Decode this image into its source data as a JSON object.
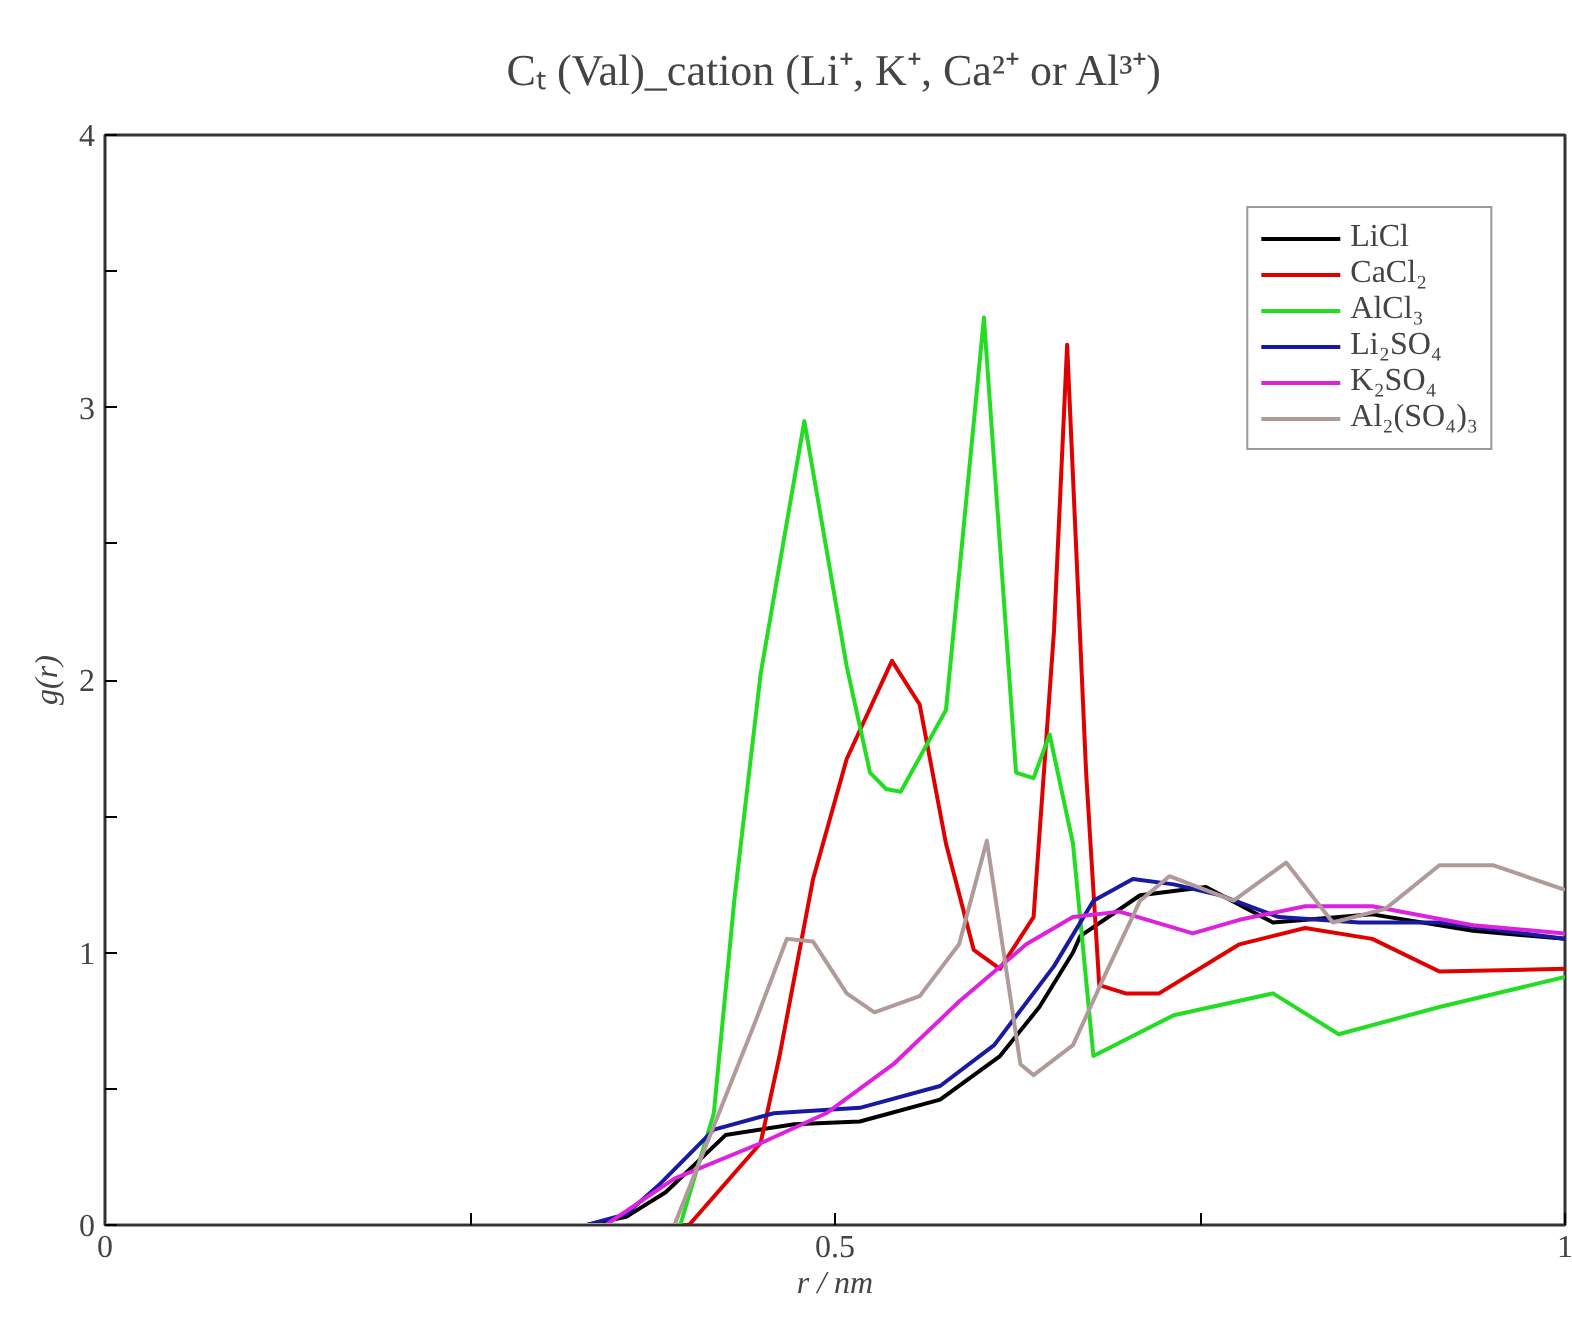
{
  "chart_data": {
    "type": "line",
    "title": "Cₜ (Val)_cation (Li⁺, K⁺, Ca²⁺ or Al³⁺)",
    "xlabel": "r / nm",
    "ylabel": "g(r)",
    "xlim": [
      0,
      1
    ],
    "ylim": [
      0,
      4
    ],
    "xticks": [
      0,
      {
        "value": 0.25,
        "label": null
      },
      0.5,
      {
        "value": 0.75,
        "label": null
      },
      1
    ],
    "yticks": [
      0,
      {
        "value": 0.5,
        "label": null
      },
      1,
      {
        "value": 1.5,
        "label": null
      },
      2,
      {
        "value": 2.5,
        "label": null
      },
      3,
      {
        "value": 3.5,
        "label": null
      },
      4
    ],
    "grid": false,
    "legend": "top right",
    "marker": "none",
    "line_style": "solid",
    "series": [
      {
        "name": "LiCl",
        "color": "#000000",
        "x": [
          0,
          0.33,
          0.357,
          0.384,
          0.425,
          0.472,
          0.517,
          0.572,
          0.613,
          0.64,
          0.663,
          0.668,
          0.709,
          0.754,
          0.8,
          0.868,
          0.937,
          1.0
        ],
        "values": [
          0,
          0,
          0.03,
          0.12,
          0.33,
          0.37,
          0.38,
          0.46,
          0.62,
          0.8,
          1.0,
          1.06,
          1.21,
          1.24,
          1.11,
          1.14,
          1.08,
          1.05
        ]
      },
      {
        "name": "CaCl₂",
        "color": "#e00000",
        "x": [
          0,
          0.4,
          0.449,
          0.462,
          0.485,
          0.508,
          0.539,
          0.558,
          0.576,
          0.595,
          0.613,
          0.636,
          0.65,
          0.659,
          0.672,
          0.681,
          0.699,
          0.722,
          0.777,
          0.822,
          0.868,
          0.914,
          1.0
        ],
        "values": [
          0,
          0,
          0.3,
          0.62,
          1.27,
          1.71,
          2.07,
          1.91,
          1.4,
          1.01,
          0.94,
          1.13,
          2.18,
          3.23,
          1.66,
          0.88,
          0.85,
          0.85,
          1.03,
          1.09,
          1.05,
          0.93,
          0.94
        ]
      },
      {
        "name": "AlCl₃",
        "color": "#22dd22",
        "x": [
          0,
          0.394,
          0.417,
          0.431,
          0.449,
          0.479,
          0.508,
          0.524,
          0.535,
          0.545,
          0.576,
          0.602,
          0.624,
          0.636,
          0.647,
          0.663,
          0.677,
          0.732,
          0.8,
          0.845,
          0.914,
          1.0
        ],
        "values": [
          0,
          0,
          0.41,
          1.19,
          2.02,
          2.95,
          2.05,
          1.66,
          1.6,
          1.59,
          1.89,
          3.33,
          1.66,
          1.64,
          1.8,
          1.4,
          0.62,
          0.77,
          0.85,
          0.7,
          0.8,
          0.91
        ]
      },
      {
        "name": "Li₂SO₄",
        "color": "#1a1aa0",
        "x": [
          0,
          0.33,
          0.357,
          0.38,
          0.417,
          0.458,
          0.517,
          0.572,
          0.609,
          0.65,
          0.677,
          0.704,
          0.732,
          0.764,
          0.804,
          0.859,
          0.914,
          1.0
        ],
        "values": [
          0,
          0,
          0.04,
          0.15,
          0.35,
          0.41,
          0.43,
          0.51,
          0.66,
          0.95,
          1.19,
          1.27,
          1.25,
          1.21,
          1.13,
          1.11,
          1.11,
          1.05
        ]
      },
      {
        "name": "K₂SO₄",
        "color": "#dd22dd",
        "x": [
          0,
          0.343,
          0.39,
          0.449,
          0.494,
          0.54,
          0.585,
          0.631,
          0.663,
          0.695,
          0.745,
          0.777,
          0.822,
          0.868,
          0.937,
          1.0
        ],
        "values": [
          0,
          0,
          0.17,
          0.3,
          0.41,
          0.59,
          0.82,
          1.03,
          1.13,
          1.15,
          1.07,
          1.12,
          1.17,
          1.17,
          1.1,
          1.07
        ]
      },
      {
        "name": "Al₂(SO₄)₃",
        "color": "#b09a9a",
        "x": [
          0,
          0.39,
          0.445,
          0.467,
          0.485,
          0.508,
          0.527,
          0.558,
          0.585,
          0.604,
          0.627,
          0.636,
          0.663,
          0.686,
          0.709,
          0.729,
          0.773,
          0.809,
          0.841,
          0.877,
          0.914,
          0.951,
          1.0
        ],
        "values": [
          0,
          0,
          0.74,
          1.05,
          1.04,
          0.85,
          0.78,
          0.84,
          1.03,
          1.41,
          0.59,
          0.55,
          0.66,
          0.93,
          1.19,
          1.28,
          1.19,
          1.33,
          1.11,
          1.16,
          1.32,
          1.32,
          1.23
        ]
      }
    ]
  }
}
